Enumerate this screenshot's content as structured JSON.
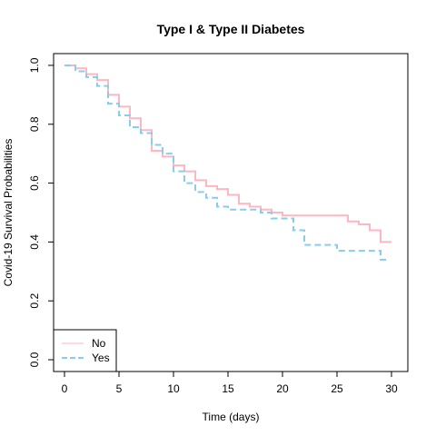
{
  "chart_data": {
    "type": "line",
    "title": "Type I & Type II Diabetes",
    "xlabel": "Time (days)",
    "ylabel": "Covid-19 Survival Probabilities",
    "xlim": [
      -1,
      31.5
    ],
    "ylim": [
      -0.04,
      1.04
    ],
    "x_ticks": [
      0,
      5,
      10,
      15,
      20,
      25,
      30
    ],
    "y_ticks": [
      0.0,
      0.2,
      0.4,
      0.6,
      0.8,
      1.0
    ],
    "y_tick_labels": [
      "0.0",
      "0.2",
      "0.4",
      "0.6",
      "0.8",
      "1.0"
    ],
    "grid": false,
    "legend_position": "bottom-left",
    "series": [
      {
        "name": "No",
        "color": "#ffb6c1",
        "dash": "solid",
        "steps": [
          [
            0,
            1.0
          ],
          [
            1,
            0.99
          ],
          [
            2,
            0.97
          ],
          [
            3,
            0.95
          ],
          [
            4,
            0.9
          ],
          [
            5,
            0.86
          ],
          [
            6,
            0.82
          ],
          [
            7,
            0.78
          ],
          [
            8,
            0.71
          ],
          [
            9,
            0.69
          ],
          [
            10,
            0.66
          ],
          [
            11,
            0.64
          ],
          [
            12,
            0.61
          ],
          [
            13,
            0.59
          ],
          [
            14,
            0.58
          ],
          [
            15,
            0.56
          ],
          [
            16,
            0.53
          ],
          [
            17,
            0.52
          ],
          [
            18,
            0.51
          ],
          [
            19,
            0.5
          ],
          [
            20,
            0.49
          ],
          [
            26,
            0.47
          ],
          [
            27,
            0.46
          ],
          [
            28,
            0.44
          ],
          [
            29,
            0.4
          ],
          [
            30,
            0.4
          ]
        ]
      },
      {
        "name": "Yes",
        "color": "#87ceeb",
        "dash": "dashed",
        "steps": [
          [
            0,
            1.0
          ],
          [
            1,
            0.98
          ],
          [
            2,
            0.96
          ],
          [
            3,
            0.93
          ],
          [
            4,
            0.87
          ],
          [
            5,
            0.83
          ],
          [
            6,
            0.79
          ],
          [
            7,
            0.77
          ],
          [
            8,
            0.73
          ],
          [
            9,
            0.7
          ],
          [
            10,
            0.64
          ],
          [
            11,
            0.6
          ],
          [
            12,
            0.57
          ],
          [
            13,
            0.55
          ],
          [
            14,
            0.52
          ],
          [
            15,
            0.51
          ],
          [
            18,
            0.5
          ],
          [
            19,
            0.48
          ],
          [
            21,
            0.44
          ],
          [
            22,
            0.39
          ],
          [
            25,
            0.37
          ],
          [
            29,
            0.34
          ],
          [
            29.6,
            0.34
          ]
        ]
      }
    ]
  }
}
